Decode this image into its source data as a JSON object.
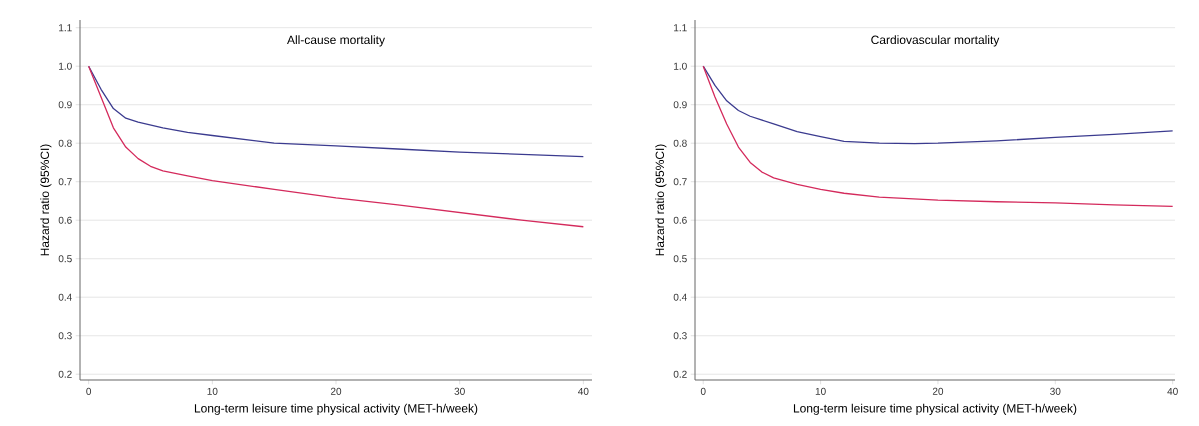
{
  "chart_data": [
    {
      "type": "line",
      "title": "All-cause mortality",
      "xlabel": "Long-term leisure time physical activity (MET-h/week)",
      "ylabel": "Hazard ratio (95%CI)",
      "xlim": [
        -0.7,
        40.7
      ],
      "ylim": [
        0.185,
        1.12
      ],
      "xticks": [
        0,
        10,
        20,
        30,
        40
      ],
      "yticks": [
        0.2,
        0.3,
        0.4,
        0.5,
        0.6,
        0.7,
        0.8,
        0.9,
        {
          "value": 1.0,
          "label": "1.0"
        },
        1.1
      ],
      "grid": "y",
      "line_style": "solid",
      "series": [
        {
          "color": "#3b3b8f",
          "x": [
            0,
            1,
            2,
            3,
            4,
            6,
            8,
            10,
            15,
            20,
            25,
            30,
            35,
            40
          ],
          "values": [
            1.0,
            0.94,
            0.89,
            0.865,
            0.855,
            0.84,
            0.828,
            0.82,
            0.8,
            0.793,
            0.785,
            0.777,
            0.771,
            0.765
          ]
        },
        {
          "color": "#d42a5c",
          "x": [
            0,
            1,
            2,
            3,
            4,
            5,
            6,
            8,
            10,
            15,
            20,
            25,
            30,
            35,
            40
          ],
          "values": [
            1.0,
            0.92,
            0.84,
            0.79,
            0.76,
            0.74,
            0.728,
            0.715,
            0.703,
            0.68,
            0.658,
            0.64,
            0.62,
            0.6,
            0.583
          ]
        }
      ]
    },
    {
      "type": "line",
      "title": "Cardiovascular mortality",
      "xlabel": "Long-term leisure time physical activity (MET-h/week)",
      "ylabel": "Hazard ratio (95%CI)",
      "xlim": [
        -0.7,
        40.2
      ],
      "ylim": [
        0.185,
        1.12
      ],
      "xticks": [
        0,
        10,
        20,
        30,
        40
      ],
      "yticks": [
        0.2,
        0.3,
        0.4,
        0.5,
        0.6,
        0.7,
        0.8,
        0.9,
        {
          "value": 1.0,
          "label": "1.0"
        },
        1.1
      ],
      "grid": "y",
      "line_style": "solid",
      "series": [
        {
          "color": "#3b3b8f",
          "x": [
            0,
            1,
            2,
            3,
            4,
            6,
            8,
            10,
            12,
            15,
            18,
            20,
            25,
            30,
            35,
            40
          ],
          "values": [
            1.0,
            0.95,
            0.91,
            0.885,
            0.87,
            0.85,
            0.83,
            0.817,
            0.805,
            0.8,
            0.799,
            0.8,
            0.806,
            0.815,
            0.823,
            0.832
          ]
        },
        {
          "color": "#d42a5c",
          "x": [
            0,
            1,
            2,
            3,
            4,
            5,
            6,
            8,
            10,
            12,
            15,
            20,
            25,
            30,
            35,
            40
          ],
          "values": [
            1.0,
            0.92,
            0.85,
            0.79,
            0.75,
            0.725,
            0.71,
            0.693,
            0.68,
            0.67,
            0.66,
            0.652,
            0.648,
            0.645,
            0.64,
            0.636
          ]
        }
      ]
    }
  ]
}
